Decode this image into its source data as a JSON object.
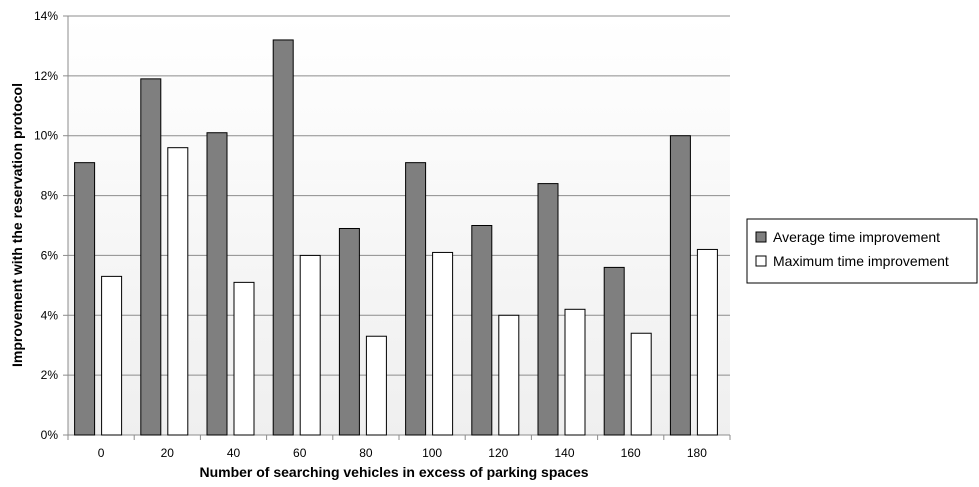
{
  "chart_data": {
    "type": "bar",
    "categories": [
      "0",
      "20",
      "40",
      "60",
      "80",
      "100",
      "120",
      "140",
      "160",
      "180"
    ],
    "series": [
      {
        "name": "Average time improvement",
        "values": [
          9.1,
          11.9,
          10.1,
          13.2,
          6.9,
          9.1,
          7.0,
          8.4,
          5.6,
          10.0
        ],
        "color": "#7f7f7f"
      },
      {
        "name": "Maximum time improvement",
        "values": [
          5.3,
          9.6,
          5.1,
          6.0,
          3.3,
          6.1,
          4.0,
          4.2,
          3.4,
          6.2
        ],
        "color": "#ffffff"
      }
    ],
    "xlabel": "Number of searching vehicles in excess of parking spaces",
    "ylabel": "Improvement with the reservation protocol",
    "ylim": [
      0,
      14
    ],
    "yticks": [
      "0%",
      "2%",
      "4%",
      "6%",
      "8%",
      "10%",
      "12%",
      "14%"
    ],
    "grid": true,
    "legend_position": "right"
  }
}
